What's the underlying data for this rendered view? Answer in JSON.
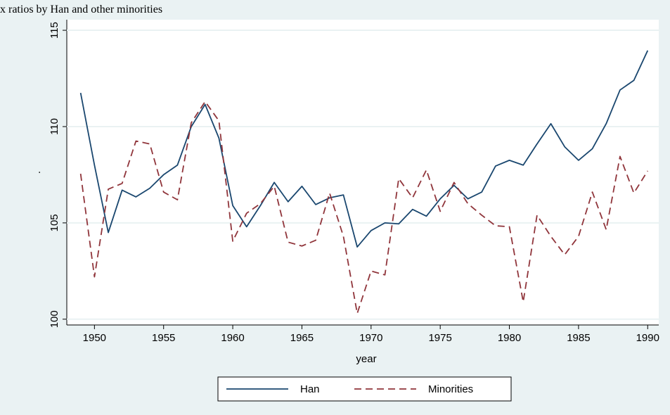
{
  "chart_data": {
    "type": "line",
    "title": "Sex ratios by Han and other minorities",
    "x_label": "year",
    "y_label": ".",
    "x": [
      1949,
      1950,
      1951,
      1952,
      1953,
      1954,
      1955,
      1956,
      1957,
      1958,
      1959,
      1960,
      1961,
      1962,
      1963,
      1964,
      1965,
      1966,
      1967,
      1968,
      1969,
      1970,
      1971,
      1972,
      1973,
      1974,
      1975,
      1976,
      1977,
      1978,
      1979,
      1980,
      1981,
      1982,
      1983,
      1984,
      1985,
      1986,
      1987,
      1988,
      1989,
      1990
    ],
    "series": [
      {
        "name": "Han",
        "color": "#1a476f",
        "dash": false,
        "values": [
          111.75,
          108.0,
          104.5,
          106.7,
          106.35,
          106.8,
          107.5,
          108.0,
          110.0,
          111.15,
          109.4,
          105.9,
          104.8,
          105.9,
          107.1,
          106.1,
          106.9,
          105.95,
          106.3,
          106.45,
          103.75,
          104.6,
          105.0,
          104.95,
          105.7,
          105.35,
          106.25,
          106.95,
          106.25,
          106.6,
          107.95,
          108.25,
          108.0,
          109.1,
          110.15,
          108.95,
          108.25,
          108.85,
          110.15,
          111.9,
          112.4,
          113.95
        ]
      },
      {
        "name": "Minorities",
        "color": "#90353b",
        "dash": true,
        "values": [
          107.55,
          102.2,
          106.75,
          107.05,
          109.25,
          109.1,
          106.6,
          106.2,
          110.2,
          111.3,
          110.3,
          104.05,
          105.5,
          106.0,
          106.9,
          104.0,
          103.8,
          104.1,
          106.55,
          104.3,
          100.3,
          102.5,
          102.3,
          107.3,
          106.3,
          107.75,
          105.6,
          107.1,
          106.0,
          105.4,
          104.85,
          104.8,
          100.9,
          105.4,
          104.3,
          103.35,
          104.3,
          106.6,
          104.65,
          108.45,
          106.55,
          107.7
        ]
      }
    ],
    "xlim": [
      1948,
      1990.8
    ],
    "ylim": [
      99.7,
      115.55
    ],
    "xticks": [
      1950,
      1955,
      1960,
      1965,
      1970,
      1975,
      1980,
      1985,
      1990
    ],
    "yticks": [
      100,
      105,
      110,
      115
    ],
    "grid": true,
    "legend": "bottom"
  }
}
